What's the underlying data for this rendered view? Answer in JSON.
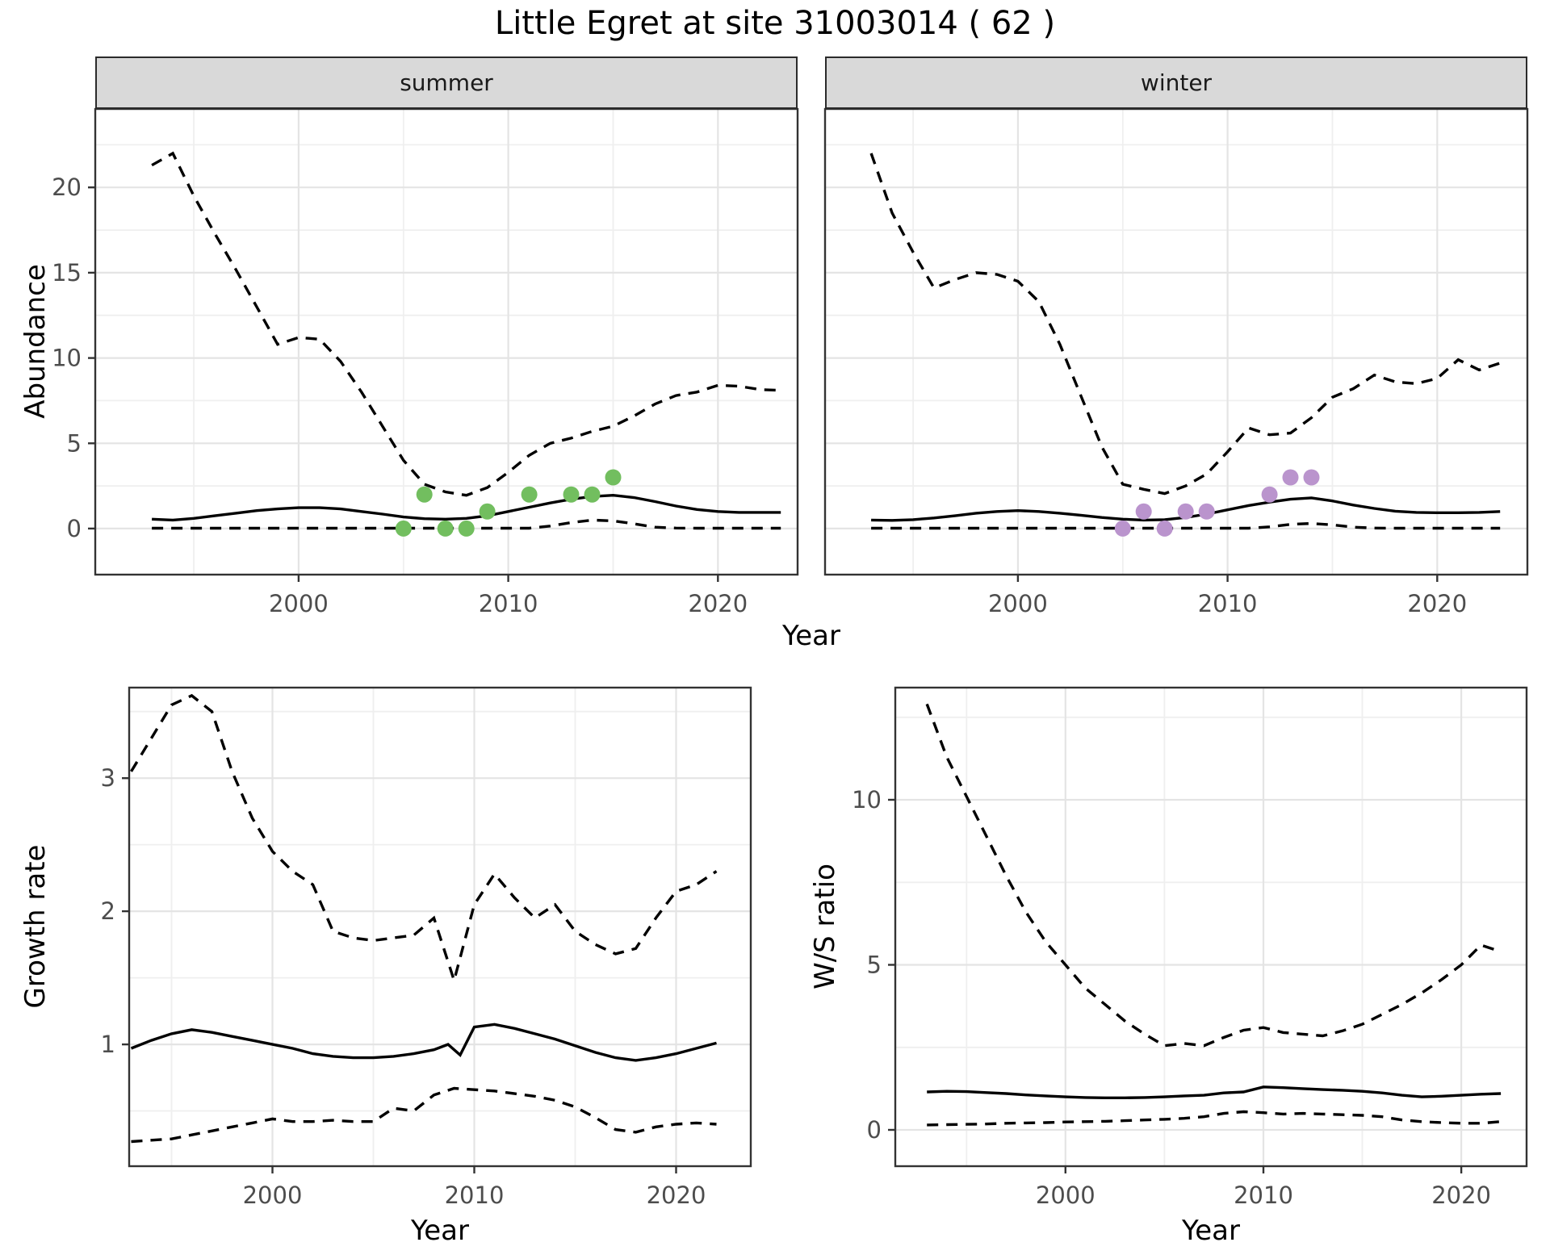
{
  "title": "Little Egret at site 31003014 ( 62 )",
  "facets": {
    "summer": "summer",
    "winter": "winter"
  },
  "axes": {
    "y_top": "Abundance",
    "x_top": "Year",
    "y_growth": "Growth rate",
    "x_growth": "Year",
    "y_ws": "W/S ratio",
    "x_ws": "Year"
  },
  "colors": {
    "summer_points": "#72BE5F",
    "winter_points": "#BA94CD",
    "line": "#000000",
    "grid_major": "#E4E4E4",
    "grid_minor": "#EFEFEF",
    "strip_bg": "#D9D9D9",
    "axis_text": "#4D4D4D",
    "panel_border": "#333333"
  },
  "chart_data": [
    {
      "id": "abundance_summer",
      "type": "line",
      "facet": "summer",
      "ylabel": "Abundance",
      "xlabel": "Year",
      "x_range": [
        1990.3,
        2023.8
      ],
      "y_range": [
        -2.7,
        24.6
      ],
      "x_ticks": {
        "major": [
          2000,
          2010,
          2020
        ],
        "labels": [
          "2000",
          "2010",
          "2020"
        ],
        "minor": [
          1995,
          2005,
          2015
        ]
      },
      "y_ticks": {
        "major": [
          0,
          5,
          10,
          15,
          20
        ],
        "labels": [
          "0",
          "5",
          "10",
          "15",
          "20"
        ],
        "minor": [
          2.5,
          7.5,
          12.5,
          17.5,
          22.5
        ]
      },
      "show_y_labels": true,
      "series": [
        {
          "name": "upper-ci",
          "style": "dashed",
          "x": [
            1993,
            1994,
            1995,
            1996,
            1997,
            1998,
            1999,
            2000,
            2001,
            2002,
            2003,
            2004,
            2005,
            2006,
            2007,
            2008,
            2009,
            2010,
            2011,
            2012,
            2013,
            2014,
            2015,
            2016,
            2017,
            2018,
            2019,
            2020,
            2021,
            2022,
            2023
          ],
          "y": [
            21.3,
            22.0,
            19.5,
            17.3,
            15.2,
            13.0,
            10.8,
            11.2,
            11.1,
            9.8,
            8.0,
            6.0,
            4.0,
            2.6,
            2.15,
            1.95,
            2.4,
            3.3,
            4.3,
            5.0,
            5.3,
            5.7,
            6.0,
            6.6,
            7.3,
            7.8,
            8.0,
            8.4,
            8.35,
            8.15,
            8.1
          ]
        },
        {
          "name": "mean",
          "style": "solid",
          "x": [
            1993,
            1994,
            1995,
            1996,
            1997,
            1998,
            1999,
            2000,
            2001,
            2002,
            2003,
            2004,
            2005,
            2006,
            2007,
            2008,
            2009,
            2010,
            2011,
            2012,
            2013,
            2014,
            2015,
            2016,
            2017,
            2018,
            2019,
            2020,
            2021,
            2022,
            2023
          ],
          "y": [
            0.55,
            0.5,
            0.6,
            0.75,
            0.9,
            1.05,
            1.15,
            1.22,
            1.22,
            1.15,
            1.0,
            0.85,
            0.68,
            0.58,
            0.55,
            0.6,
            0.75,
            1.0,
            1.25,
            1.5,
            1.72,
            1.88,
            1.95,
            1.82,
            1.58,
            1.32,
            1.12,
            1.0,
            0.95,
            0.95,
            0.95
          ]
        },
        {
          "name": "lower-ci",
          "style": "dashed",
          "x": [
            1993,
            1994,
            1995,
            1996,
            1997,
            1998,
            1999,
            2000,
            2001,
            2002,
            2003,
            2004,
            2005,
            2006,
            2007,
            2008,
            2009,
            2010,
            2011,
            2012,
            2013,
            2014,
            2015,
            2016,
            2017,
            2018,
            2019,
            2020,
            2021,
            2022,
            2023
          ],
          "y": [
            0.02,
            0.02,
            0.02,
            0.02,
            0.02,
            0.02,
            0.02,
            0.02,
            0.02,
            0.02,
            0.02,
            0.02,
            0.02,
            0.02,
            0.02,
            0.02,
            0.02,
            0.02,
            0.02,
            0.15,
            0.35,
            0.5,
            0.45,
            0.28,
            0.08,
            0.03,
            0.02,
            0.02,
            0.02,
            0.02,
            0.02
          ]
        }
      ],
      "points": {
        "name": "summer-observations",
        "color_key": "summer_points",
        "x": [
          2005,
          2006,
          2007,
          2008,
          2009,
          2011,
          2013,
          2014,
          2015
        ],
        "y": [
          0,
          2,
          0,
          0,
          1,
          2,
          2,
          2,
          3
        ]
      }
    },
    {
      "id": "abundance_winter",
      "type": "line",
      "facet": "winter",
      "ylabel": "Abundance",
      "xlabel": "Year",
      "x_range": [
        1990.8,
        2024.3
      ],
      "y_range": [
        -2.7,
        24.6
      ],
      "x_ticks": {
        "major": [
          2000,
          2010,
          2020
        ],
        "labels": [
          "2000",
          "2010",
          "2020"
        ],
        "minor": [
          1995,
          2005,
          2015
        ]
      },
      "y_ticks": {
        "major": [
          0,
          5,
          10,
          15,
          20
        ],
        "labels": [
          "0",
          "5",
          "10",
          "15",
          "20"
        ],
        "minor": [
          2.5,
          7.5,
          12.5,
          17.5,
          22.5
        ]
      },
      "show_y_labels": false,
      "series": [
        {
          "name": "upper-ci",
          "style": "dashed",
          "x": [
            1993,
            1994,
            1995,
            1996,
            1997,
            1998,
            1999,
            2000,
            2001,
            2002,
            2003,
            2004,
            2005,
            2006,
            2007,
            2008,
            2009,
            2010,
            2011,
            2012,
            2013,
            2014,
            2015,
            2016,
            2017,
            2018,
            2019,
            2020,
            2021,
            2022,
            2023
          ],
          "y": [
            22.0,
            18.5,
            16.2,
            14.1,
            14.6,
            15.0,
            14.9,
            14.5,
            13.3,
            10.8,
            7.8,
            4.8,
            2.6,
            2.3,
            2.05,
            2.5,
            3.2,
            4.5,
            5.9,
            5.5,
            5.6,
            6.5,
            7.7,
            8.2,
            9.0,
            8.6,
            8.5,
            8.8,
            9.9,
            9.3,
            9.7
          ]
        },
        {
          "name": "mean",
          "style": "solid",
          "x": [
            1993,
            1994,
            1995,
            1996,
            1997,
            1998,
            1999,
            2000,
            2001,
            2002,
            2003,
            2004,
            2005,
            2006,
            2007,
            2008,
            2009,
            2010,
            2011,
            2012,
            2013,
            2014,
            2015,
            2016,
            2017,
            2018,
            2019,
            2020,
            2021,
            2022,
            2023
          ],
          "y": [
            0.5,
            0.48,
            0.52,
            0.62,
            0.75,
            0.9,
            1.0,
            1.05,
            1.0,
            0.9,
            0.78,
            0.65,
            0.55,
            0.5,
            0.52,
            0.65,
            0.85,
            1.1,
            1.35,
            1.55,
            1.72,
            1.8,
            1.62,
            1.38,
            1.18,
            1.02,
            0.95,
            0.93,
            0.93,
            0.95,
            1.0
          ]
        },
        {
          "name": "lower-ci",
          "style": "dashed",
          "x": [
            1993,
            1994,
            1995,
            1996,
            1997,
            1998,
            1999,
            2000,
            2001,
            2002,
            2003,
            2004,
            2005,
            2006,
            2007,
            2008,
            2009,
            2010,
            2011,
            2012,
            2013,
            2014,
            2015,
            2016,
            2017,
            2018,
            2019,
            2020,
            2021,
            2022,
            2023
          ],
          "y": [
            0.02,
            0.02,
            0.02,
            0.02,
            0.02,
            0.02,
            0.02,
            0.02,
            0.02,
            0.02,
            0.02,
            0.02,
            0.02,
            0.02,
            0.02,
            0.02,
            0.02,
            0.02,
            0.02,
            0.1,
            0.25,
            0.3,
            0.22,
            0.08,
            0.03,
            0.02,
            0.02,
            0.02,
            0.02,
            0.02,
            0.02
          ]
        }
      ],
      "points": {
        "name": "winter-observations",
        "color_key": "winter_points",
        "x": [
          2005,
          2006,
          2007,
          2008,
          2009,
          2012,
          2013,
          2014
        ],
        "y": [
          0,
          1,
          0,
          1,
          1,
          2,
          3,
          3
        ]
      }
    },
    {
      "id": "growth_rate",
      "type": "line",
      "facet": null,
      "ylabel": "Growth rate",
      "xlabel": "Year",
      "x_range": [
        1992.9,
        2023.7
      ],
      "y_range": [
        0.085,
        3.68
      ],
      "x_ticks": {
        "major": [
          2000,
          2010,
          2020
        ],
        "labels": [
          "2000",
          "2010",
          "2020"
        ],
        "minor": [
          1995,
          2005,
          2015
        ]
      },
      "y_ticks": {
        "major": [
          1,
          2,
          3
        ],
        "labels": [
          "1",
          "2",
          "3"
        ],
        "minor": [
          0.5,
          1.5,
          2.5,
          3.5
        ]
      },
      "show_y_labels": true,
      "series": [
        {
          "name": "upper-ci",
          "style": "dashed",
          "x": [
            1993,
            1994,
            1995,
            1996,
            1997,
            1998,
            1999,
            2000,
            2001,
            2002,
            2003,
            2004,
            2005,
            2006,
            2007,
            2008,
            2009,
            2010,
            2011,
            2012,
            2013,
            2014,
            2015,
            2016,
            2017,
            2018,
            2019,
            2020,
            2021,
            2022
          ],
          "y": [
            3.05,
            3.3,
            3.55,
            3.62,
            3.5,
            3.05,
            2.7,
            2.45,
            2.3,
            2.2,
            1.85,
            1.8,
            1.78,
            1.8,
            1.82,
            1.95,
            1.48,
            2.05,
            2.28,
            2.1,
            1.95,
            2.05,
            1.85,
            1.75,
            1.68,
            1.72,
            1.95,
            2.15,
            2.2,
            2.3
          ]
        },
        {
          "name": "mean",
          "style": "solid",
          "x": [
            1993,
            1994,
            1995,
            1996,
            1997,
            1998,
            1999,
            2000,
            2001,
            2002,
            2003,
            2004,
            2005,
            2006,
            2007,
            2008,
            2008.7,
            2009.3,
            2010,
            2011,
            2012,
            2013,
            2014,
            2015,
            2016,
            2017,
            2018,
            2019,
            2020,
            2021,
            2022
          ],
          "y": [
            0.97,
            1.03,
            1.08,
            1.11,
            1.09,
            1.06,
            1.03,
            1.0,
            0.97,
            0.93,
            0.91,
            0.9,
            0.9,
            0.91,
            0.93,
            0.96,
            1.0,
            0.92,
            1.13,
            1.15,
            1.12,
            1.08,
            1.04,
            0.99,
            0.94,
            0.9,
            0.88,
            0.9,
            0.93,
            0.97,
            1.01
          ]
        },
        {
          "name": "lower-ci",
          "style": "dashed",
          "x": [
            1993,
            1994,
            1995,
            1996,
            1997,
            1998,
            1999,
            2000,
            2001,
            2002,
            2003,
            2004,
            2005,
            2006,
            2007,
            2008,
            2009,
            2010,
            2011,
            2012,
            2013,
            2014,
            2015,
            2016,
            2017,
            2018,
            2019,
            2020,
            2021,
            2022
          ],
          "y": [
            0.27,
            0.28,
            0.29,
            0.32,
            0.35,
            0.38,
            0.41,
            0.44,
            0.42,
            0.42,
            0.43,
            0.42,
            0.42,
            0.52,
            0.5,
            0.62,
            0.67,
            0.66,
            0.65,
            0.63,
            0.61,
            0.58,
            0.53,
            0.45,
            0.36,
            0.34,
            0.38,
            0.4,
            0.41,
            0.4
          ]
        }
      ],
      "points": null
    },
    {
      "id": "ws_ratio",
      "type": "line",
      "facet": null,
      "ylabel": "W/S ratio",
      "xlabel": "Year",
      "x_range": [
        1991.4,
        2023.3
      ],
      "y_range": [
        -1.1,
        13.4
      ],
      "x_ticks": {
        "major": [
          2000,
          2010,
          2020
        ],
        "labels": [
          "2000",
          "2010",
          "2020"
        ],
        "minor": [
          1995,
          2005,
          2015
        ]
      },
      "y_ticks": {
        "major": [
          0,
          5,
          10
        ],
        "labels": [
          "0",
          "5",
          "10"
        ],
        "minor": [
          2.5,
          7.5,
          12.5
        ]
      },
      "show_y_labels": true,
      "series": [
        {
          "name": "upper-ci",
          "style": "dashed",
          "x": [
            1993,
            1994,
            1995,
            1996,
            1997,
            1998,
            1999,
            2000,
            2001,
            2002,
            2003,
            2004,
            2005,
            2006,
            2007,
            2008,
            2009,
            2010,
            2011,
            2012,
            2013,
            2014,
            2015,
            2016,
            2017,
            2018,
            2019,
            2020,
            2021,
            2022
          ],
          "y": [
            12.9,
            11.3,
            10.1,
            8.9,
            7.7,
            6.6,
            5.7,
            5.0,
            4.3,
            3.8,
            3.3,
            2.9,
            2.55,
            2.62,
            2.55,
            2.8,
            3.02,
            3.1,
            2.95,
            2.9,
            2.85,
            3.0,
            3.2,
            3.5,
            3.8,
            4.15,
            4.55,
            5.0,
            5.6,
            5.4
          ]
        },
        {
          "name": "mean",
          "style": "solid",
          "x": [
            1993,
            1994,
            1995,
            1996,
            1997,
            1998,
            1999,
            2000,
            2001,
            2002,
            2003,
            2004,
            2005,
            2006,
            2007,
            2008,
            2009,
            2010,
            2011,
            2012,
            2013,
            2014,
            2015,
            2016,
            2017,
            2018,
            2019,
            2020,
            2021,
            2022
          ],
          "y": [
            1.15,
            1.17,
            1.16,
            1.13,
            1.1,
            1.06,
            1.03,
            1.0,
            0.98,
            0.97,
            0.97,
            0.98,
            1.0,
            1.03,
            1.05,
            1.12,
            1.15,
            1.3,
            1.28,
            1.25,
            1.22,
            1.2,
            1.17,
            1.12,
            1.05,
            1.0,
            1.02,
            1.05,
            1.08,
            1.1
          ]
        },
        {
          "name": "lower-ci",
          "style": "dashed",
          "x": [
            1993,
            1994,
            1995,
            1996,
            1997,
            1998,
            1999,
            2000,
            2001,
            2002,
            2003,
            2004,
            2005,
            2006,
            2007,
            2008,
            2009,
            2010,
            2011,
            2012,
            2013,
            2014,
            2015,
            2016,
            2017,
            2018,
            2019,
            2020,
            2021,
            2022
          ],
          "y": [
            0.15,
            0.16,
            0.17,
            0.18,
            0.2,
            0.21,
            0.22,
            0.24,
            0.25,
            0.26,
            0.28,
            0.3,
            0.32,
            0.35,
            0.4,
            0.5,
            0.55,
            0.52,
            0.48,
            0.5,
            0.48,
            0.46,
            0.44,
            0.4,
            0.3,
            0.25,
            0.22,
            0.2,
            0.2,
            0.25
          ]
        }
      ],
      "points": null
    }
  ]
}
